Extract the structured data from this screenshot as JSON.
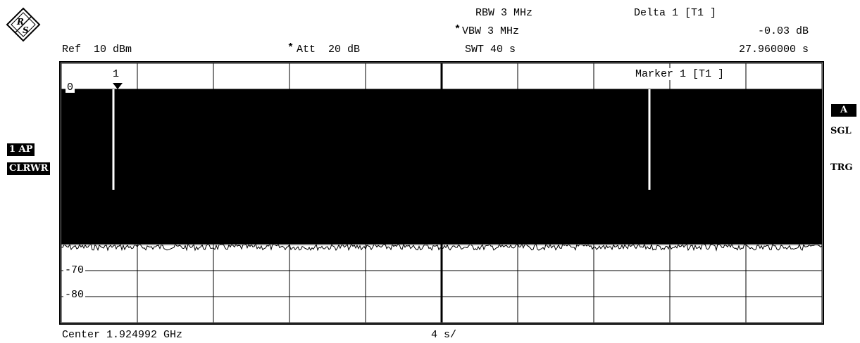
{
  "header": {
    "ref": "Ref  10 dBm",
    "att": "Att  20 dB",
    "rbw": "RBW 3 MHz",
    "vbw": "VBW 3 MHz",
    "swt": "SWT 40 s",
    "delta_label": "Delta 1 [T1 ]",
    "delta_value": "-0.03 dB",
    "delta_time": "27.960000 s"
  },
  "screen": {
    "marker_number": "1",
    "marker_info": "Marker 1 [T1 ]",
    "top_level": "0",
    "level_70": "-70",
    "level_80": "-80"
  },
  "left_panel": {
    "trace": "1 AP",
    "mode": "CLRWR"
  },
  "right_panel": {
    "screen_a": "A",
    "sgl": "SGL",
    "trg": "TRG"
  },
  "footer": {
    "center": "Center 1.924992 GHz",
    "span_div": "4 s/"
  },
  "colors": {
    "trace": "#000000",
    "grid": "#000000",
    "background": "#ffffff"
  },
  "icons": {
    "logo": "rohde-schwarz-logo-icon"
  }
}
